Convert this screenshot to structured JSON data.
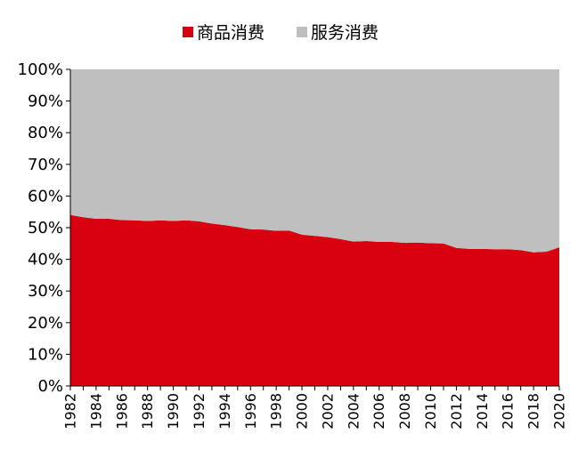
{
  "chart_data": {
    "type": "area",
    "stacked": true,
    "percent": true,
    "title": "",
    "xlabel": "",
    "ylabel": "",
    "ylim": [
      0,
      100
    ],
    "y_ticks": [
      "0%",
      "10%",
      "20%",
      "30%",
      "40%",
      "50%",
      "60%",
      "70%",
      "80%",
      "90%",
      "100%"
    ],
    "x": [
      1982,
      1983,
      1984,
      1985,
      1986,
      1987,
      1988,
      1989,
      1990,
      1991,
      1992,
      1993,
      1994,
      1995,
      1996,
      1997,
      1998,
      1999,
      2000,
      2001,
      2002,
      2003,
      2004,
      2005,
      2006,
      2007,
      2008,
      2009,
      2010,
      2011,
      2012,
      2013,
      2014,
      2015,
      2016,
      2017,
      2018,
      2019,
      2020
    ],
    "x_tick_labels": [
      "1982",
      "1984",
      "1986",
      "1988",
      "1990",
      "1992",
      "1994",
      "1996",
      "1998",
      "2000",
      "2002",
      "2004",
      "2006",
      "2008",
      "2010",
      "2012",
      "2014",
      "2016",
      "2018",
      "2020"
    ],
    "legend_position": "top-center",
    "grid": false,
    "series": [
      {
        "name": "商品消费",
        "color": "#d9000f",
        "values": [
          54.0,
          53.3,
          52.8,
          52.8,
          52.4,
          52.3,
          52.1,
          52.3,
          52.1,
          52.3,
          52.0,
          51.3,
          50.8,
          50.2,
          49.5,
          49.4,
          49.0,
          49.1,
          47.8,
          47.4,
          47.0,
          46.4,
          45.6,
          45.8,
          45.5,
          45.5,
          45.2,
          45.3,
          45.1,
          45.0,
          43.6,
          43.3,
          43.3,
          43.2,
          43.2,
          42.9,
          42.2,
          42.4,
          43.8
        ]
      },
      {
        "name": "服务消费",
        "color": "#bfbfbf",
        "values": [
          46.0,
          46.7,
          47.2,
          47.2,
          47.6,
          47.7,
          47.9,
          47.7,
          47.9,
          47.7,
          48.0,
          48.7,
          49.2,
          49.8,
          50.5,
          50.6,
          51.0,
          50.9,
          52.2,
          52.6,
          53.0,
          53.6,
          54.4,
          54.2,
          54.5,
          54.5,
          54.8,
          54.7,
          54.9,
          55.0,
          56.4,
          56.7,
          56.7,
          56.8,
          56.8,
          57.1,
          57.8,
          57.6,
          56.2
        ]
      }
    ]
  }
}
